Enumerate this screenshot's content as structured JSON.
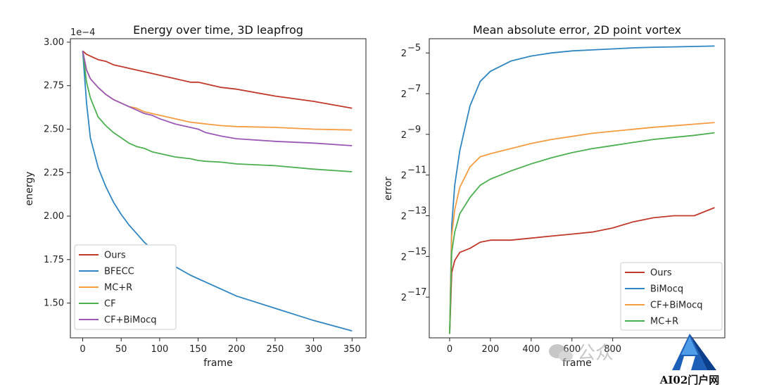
{
  "chart_data": [
    {
      "type": "line",
      "title": "Energy over time, 3D leapfrog",
      "xlabel": "frame",
      "ylabel": "energy",
      "y_scale_note": "1e−4",
      "xlim": [
        -16,
        368
      ],
      "ylim": [
        1.3,
        3.02
      ],
      "xticks": [
        0,
        50,
        100,
        150,
        200,
        250,
        300,
        350
      ],
      "yticks": [
        1.5,
        1.75,
        2.0,
        2.25,
        2.5,
        2.75,
        3.0
      ],
      "ytick_labels": [
        "1.50",
        "1.75",
        "2.00",
        "2.25",
        "2.50",
        "2.75",
        "3.00"
      ],
      "legend_position": "lower-left",
      "x": [
        0,
        5,
        10,
        20,
        30,
        40,
        50,
        60,
        70,
        80,
        90,
        100,
        120,
        140,
        150,
        160,
        180,
        200,
        250,
        300,
        350
      ],
      "series": [
        {
          "name": "Ours",
          "color": "#c0392b",
          "values": [
            2.95,
            2.93,
            2.92,
            2.9,
            2.89,
            2.87,
            2.86,
            2.85,
            2.84,
            2.83,
            2.82,
            2.81,
            2.79,
            2.77,
            2.77,
            2.76,
            2.74,
            2.73,
            2.69,
            2.66,
            2.62
          ]
        },
        {
          "name": "BFECC",
          "color": "#2e86c1",
          "values": [
            2.95,
            2.65,
            2.45,
            2.28,
            2.17,
            2.08,
            2.01,
            1.95,
            1.9,
            1.85,
            1.81,
            1.77,
            1.71,
            1.66,
            1.64,
            1.62,
            1.58,
            1.54,
            1.47,
            1.4,
            1.34
          ]
        },
        {
          "name": "MC+R",
          "color": "#f39c40",
          "values": [
            2.95,
            2.84,
            2.79,
            2.74,
            2.7,
            2.67,
            2.65,
            2.63,
            2.62,
            2.6,
            2.59,
            2.58,
            2.56,
            2.54,
            2.535,
            2.53,
            2.52,
            2.515,
            2.51,
            2.5,
            2.495
          ]
        },
        {
          "name": "CF",
          "color": "#4caf50",
          "values": [
            2.95,
            2.77,
            2.68,
            2.57,
            2.52,
            2.48,
            2.45,
            2.42,
            2.4,
            2.39,
            2.37,
            2.36,
            2.34,
            2.33,
            2.32,
            2.315,
            2.31,
            2.3,
            2.29,
            2.27,
            2.255
          ]
        },
        {
          "name": "CF+BiMocq",
          "color": "#9b59b6",
          "values": [
            2.95,
            2.84,
            2.79,
            2.74,
            2.7,
            2.67,
            2.65,
            2.63,
            2.61,
            2.59,
            2.58,
            2.56,
            2.53,
            2.51,
            2.5,
            2.48,
            2.46,
            2.445,
            2.43,
            2.42,
            2.405
          ]
        }
      ]
    },
    {
      "type": "line",
      "title": "Mean absolute error, 2D point vortex",
      "xlabel": "frame",
      "ylabel": "error",
      "y_scale": "log2",
      "xlim": [
        -100,
        1350
      ],
      "ylim_log2": [
        -19,
        -4.3
      ],
      "xticks": [
        0,
        200,
        400,
        600,
        800
      ],
      "yticks_log2": [
        -17,
        -15,
        -13,
        -11,
        -9,
        -7,
        -5
      ],
      "legend_position": "lower-right",
      "x": [
        0,
        10,
        25,
        50,
        100,
        150,
        200,
        300,
        400,
        500,
        600,
        700,
        800,
        900,
        1000,
        1100,
        1200,
        1300
      ],
      "series": [
        {
          "name": "Ours",
          "color": "#c0392b",
          "values_log2": [
            -18.8,
            -15.8,
            -15.2,
            -14.8,
            -14.6,
            -14.3,
            -14.2,
            -14.2,
            -14.1,
            -14.0,
            -13.9,
            -13.8,
            -13.6,
            -13.3,
            -13.1,
            -13.0,
            -13.0,
            -12.6
          ]
        },
        {
          "name": "BiMocq",
          "color": "#2e86c1",
          "values_log2": [
            -18.8,
            -13.5,
            -11.5,
            -9.8,
            -7.6,
            -6.4,
            -5.9,
            -5.4,
            -5.15,
            -5.0,
            -4.9,
            -4.85,
            -4.8,
            -4.75,
            -4.72,
            -4.7,
            -4.68,
            -4.66
          ]
        },
        {
          "name": "CF+BiMocq",
          "color": "#f39c40",
          "values_log2": [
            -18.8,
            -14.0,
            -12.7,
            -11.6,
            -10.6,
            -10.1,
            -9.95,
            -9.7,
            -9.45,
            -9.25,
            -9.1,
            -8.95,
            -8.85,
            -8.75,
            -8.65,
            -8.58,
            -8.5,
            -8.42
          ]
        },
        {
          "name": "MC+R",
          "color": "#4caf50",
          "values_log2": [
            -18.8,
            -14.8,
            -13.8,
            -12.9,
            -12.1,
            -11.5,
            -11.2,
            -10.8,
            -10.45,
            -10.15,
            -9.9,
            -9.7,
            -9.55,
            -9.4,
            -9.25,
            -9.15,
            -9.05,
            -8.92
          ]
        }
      ]
    }
  ],
  "watermark": {
    "brand_text": "AI02门户网",
    "overlay_text": "公众"
  }
}
